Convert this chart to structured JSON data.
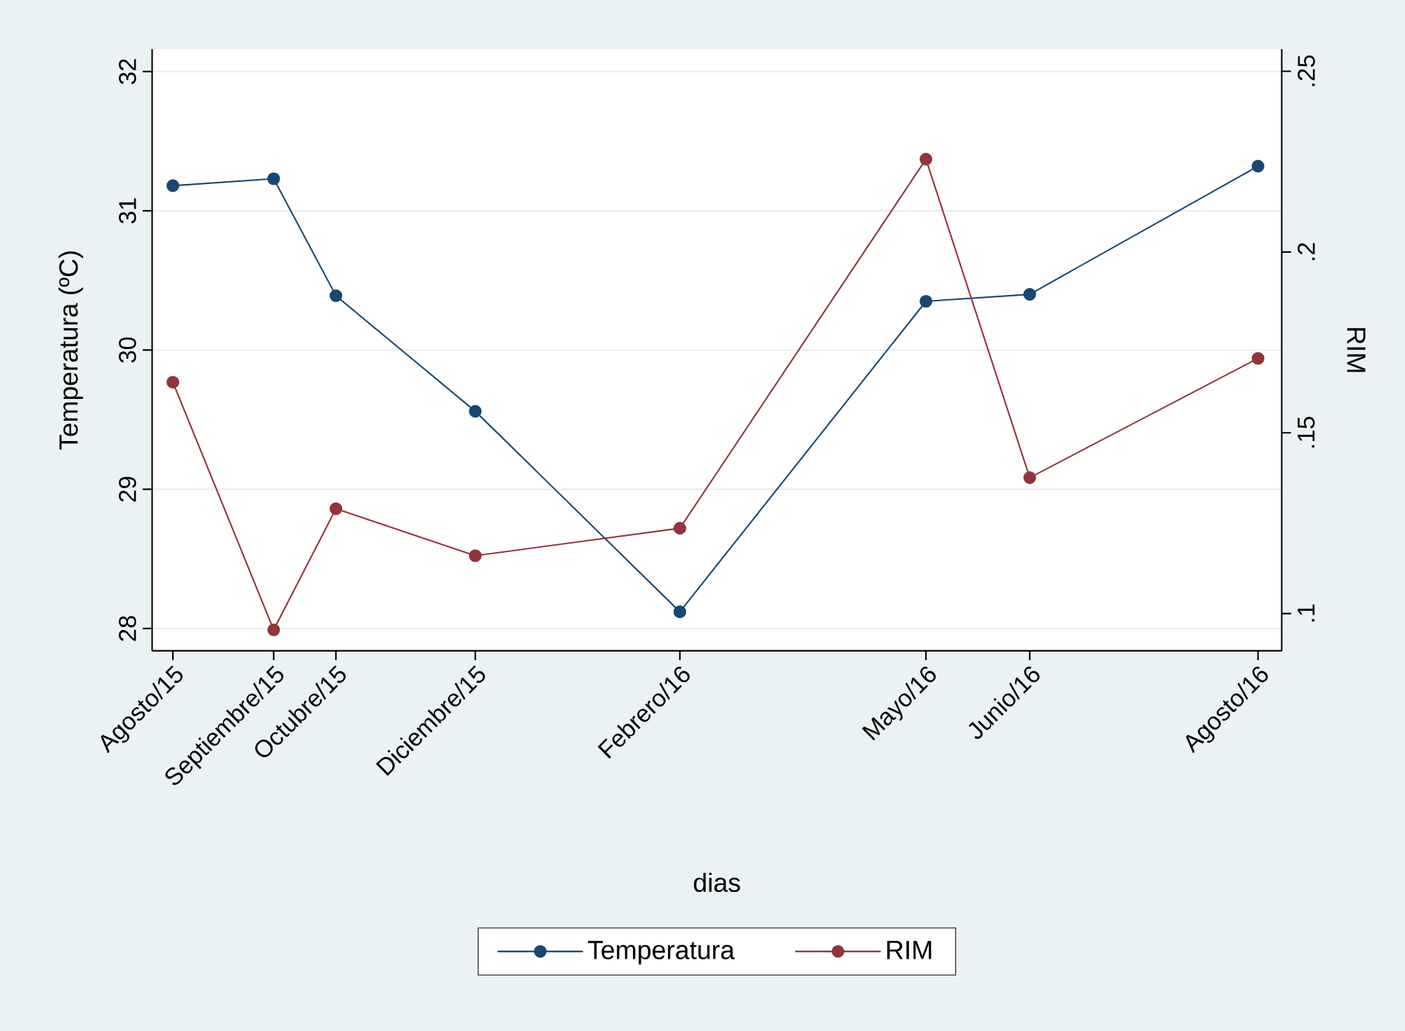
{
  "chart_data": {
    "type": "line",
    "xlabel": "dias",
    "ylabel": "Temperatura (ºC)",
    "y2label": "RIM",
    "x": [
      "2015-08-25",
      "2015-09-28",
      "2015-10-19",
      "2015-12-05",
      "2016-02-12",
      "2016-05-05",
      "2016-06-09",
      "2016-08-25"
    ],
    "series": [
      {
        "name": "Temperatura",
        "color": "#1a476f",
        "values": [
          31.18,
          31.23,
          30.39,
          29.56,
          28.12,
          30.35,
          30.4,
          31.32
        ]
      },
      {
        "name": "RIM",
        "color": "#90353b",
        "axis": "y2",
        "values": [
          0.164,
          0.0955,
          0.129,
          0.116,
          0.1236,
          0.2257,
          0.1376,
          0.1706
        ]
      }
    ],
    "xlim": [
      "2015-08-18",
      "2016-09-02"
    ],
    "xticks": [
      {
        "value": "2015-08-25",
        "label": "Agosto/15"
      },
      {
        "value": "2015-09-28",
        "label": "Septiembre/15"
      },
      {
        "value": "2015-10-19",
        "label": "Octubre/15"
      },
      {
        "value": "2015-12-05",
        "label": "Diciembre/15"
      },
      {
        "value": "2016-02-12",
        "label": "Febrero/16"
      },
      {
        "value": "2016-05-05",
        "label": "Mayo/16"
      },
      {
        "value": "2016-06-09",
        "label": "Junio/16"
      },
      {
        "value": "2016-08-25",
        "label": "Agosto/16"
      }
    ],
    "ylim": [
      27.84,
      32.16
    ],
    "yticks": [
      28,
      29,
      30,
      31,
      32
    ],
    "y2lim": [
      0.0897,
      0.2561
    ],
    "y2ticks": [
      {
        "value": 0.1,
        "label": ".1"
      },
      {
        "value": 0.15,
        "label": ".15"
      },
      {
        "value": 0.2,
        "label": ".2"
      },
      {
        "value": 0.25,
        "label": ".25"
      }
    ],
    "grid": "y",
    "legend": "bottom",
    "marker": "circle",
    "line_style": "solid"
  }
}
